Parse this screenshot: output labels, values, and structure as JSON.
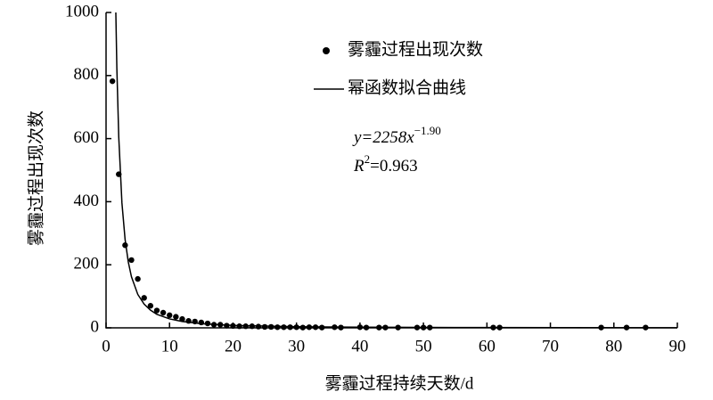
{
  "chart_data": {
    "type": "scatter",
    "xlabel": "雾霾过程持续天数/d",
    "ylabel": "雾霾过程出现次数",
    "xlim": [
      0,
      90
    ],
    "xticks": [
      0,
      10,
      20,
      30,
      40,
      50,
      60,
      70,
      80,
      90
    ],
    "ylim": [
      0,
      1000
    ],
    "yticks": [
      0,
      200,
      400,
      600,
      800,
      1000
    ],
    "annotations": {
      "equation": "y=2258x",
      "exponent": "−1.90",
      "r": "R",
      "r_power": "2",
      "r_value": "=0.963"
    },
    "series": [
      {
        "name": "雾霾过程出现次数",
        "color": "#000000",
        "marker": "dot",
        "x": [
          1,
          2,
          3,
          4,
          5,
          6,
          7,
          8,
          9,
          10,
          11,
          12,
          13,
          14,
          15,
          16,
          17,
          18,
          19,
          20,
          21,
          22,
          23,
          24,
          25,
          26,
          27,
          28,
          29,
          30,
          31,
          32,
          33,
          34,
          36,
          37,
          40,
          41,
          43,
          44,
          46,
          49,
          50,
          51,
          61,
          62,
          78,
          82,
          85
        ],
        "values": [
          782,
          487,
          262,
          215,
          155,
          95,
          70,
          55,
          48,
          40,
          35,
          28,
          22,
          20,
          17,
          14,
          10,
          10,
          7,
          6,
          5,
          5,
          5,
          4,
          3,
          3,
          2,
          2,
          2,
          2,
          1,
          2,
          2,
          1,
          2,
          1,
          2,
          1,
          1,
          1,
          1,
          1,
          1,
          1,
          1,
          1,
          1,
          1,
          1
        ]
      },
      {
        "name": "幂函数拟合曲线",
        "color": "#000000",
        "marker": "line",
        "x": [
          1.54,
          1.7,
          2,
          2.5,
          3,
          3.5,
          4,
          5,
          6,
          7,
          8,
          10,
          12,
          15,
          20,
          30,
          40,
          60,
          90
        ],
        "values": [
          1000,
          824,
          605,
          396,
          280,
          209,
          162,
          106,
          75,
          56,
          43,
          28.4,
          20,
          13.1,
          7.6,
          3.5,
          2.0,
          0.94,
          0.44
        ]
      }
    ]
  }
}
